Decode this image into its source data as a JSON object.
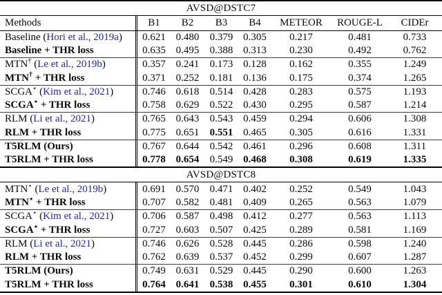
{
  "colors": {
    "citation_blue": "#2424aa",
    "rule_black": "#000000",
    "text_black": "#0a0a0a"
  },
  "table": {
    "columns": [
      "Methods",
      "B1",
      "B2",
      "B3",
      "B4",
      "METEOR",
      "ROUGE-L",
      "CIDEr"
    ],
    "sections": [
      {
        "title": "AVSD@DSTC7",
        "show_header": true,
        "groups": [
          [
            {
              "method": {
                "pre": "Baseline",
                "sup": "",
                "post": "",
                "cite": "Hori et al., 2019a",
                "bold": false
              },
              "values": [
                "0.621",
                "0.480",
                "0.379",
                "0.305",
                "0.217",
                "0.481",
                "0.733"
              ],
              "bold_values": [
                false,
                false,
                false,
                false,
                false,
                false,
                false
              ]
            },
            {
              "method": {
                "pre": "Baseline + THR loss",
                "sup": "",
                "post": "",
                "cite": "",
                "bold": true
              },
              "values": [
                "0.635",
                "0.495",
                "0.388",
                "0.313",
                "0.230",
                "0.492",
                "0.762"
              ],
              "bold_values": [
                false,
                false,
                false,
                false,
                false,
                false,
                false
              ]
            }
          ],
          [
            {
              "method": {
                "pre": "MTN",
                "sup": "†",
                "post": "",
                "cite": "Le et al., 2019b",
                "bold": false
              },
              "values": [
                "0.357",
                "0.241",
                "0.173",
                "0.128",
                "0.162",
                "0.355",
                "1.249"
              ],
              "bold_values": [
                false,
                false,
                false,
                false,
                false,
                false,
                false
              ]
            },
            {
              "method": {
                "pre": "MTN",
                "sup": "†",
                "post": " + THR loss",
                "cite": "",
                "bold": true
              },
              "values": [
                "0.371",
                "0.252",
                "0.181",
                "0.136",
                "0.175",
                "0.374",
                "1.265"
              ],
              "bold_values": [
                false,
                false,
                false,
                false,
                false,
                false,
                false
              ]
            }
          ],
          [
            {
              "method": {
                "pre": "SCGA",
                "sup": "⋆",
                "post": "",
                "cite": "Kim et al., 2021",
                "bold": false
              },
              "values": [
                "0.746",
                "0.618",
                "0.514",
                "0.428",
                "0.283",
                "0.575",
                "1.193"
              ],
              "bold_values": [
                false,
                false,
                false,
                false,
                false,
                false,
                false
              ]
            },
            {
              "method": {
                "pre": "SCGA",
                "sup": "⋆",
                "post": " + THR loss",
                "cite": "",
                "bold": true
              },
              "values": [
                "0.758",
                "0.629",
                "0.522",
                "0.430",
                "0.295",
                "0.587",
                "1.214"
              ],
              "bold_values": [
                false,
                false,
                false,
                false,
                false,
                false,
                false
              ]
            }
          ],
          [
            {
              "method": {
                "pre": "RLM",
                "sup": "",
                "post": "",
                "cite": "Li et al., 2021",
                "bold": false
              },
              "values": [
                "0.765",
                "0.643",
                "0.543",
                "0.459",
                "0.294",
                "0.606",
                "1.308"
              ],
              "bold_values": [
                false,
                false,
                false,
                false,
                false,
                false,
                false
              ]
            },
            {
              "method": {
                "pre": "RLM + THR loss",
                "sup": "",
                "post": "",
                "cite": "",
                "bold": true
              },
              "values": [
                "0.775",
                "0.651",
                "0.551",
                "0.465",
                "0.305",
                "0.616",
                "1.331"
              ],
              "bold_values": [
                false,
                false,
                true,
                false,
                false,
                false,
                false
              ]
            }
          ],
          [
            {
              "method": {
                "pre": "T5RLM (Ours)",
                "sup": "",
                "post": "",
                "cite": "",
                "bold": true
              },
              "values": [
                "0.767",
                "0.644",
                "0.542",
                "0.461",
                "0.296",
                "0.608",
                "1.311"
              ],
              "bold_values": [
                false,
                false,
                false,
                false,
                false,
                false,
                false
              ]
            },
            {
              "method": {
                "pre": "T5RLM + THR loss",
                "sup": "",
                "post": "",
                "cite": "",
                "bold": true
              },
              "values": [
                "0.778",
                "0.654",
                "0.549",
                "0.468",
                "0.308",
                "0.619",
                "1.335"
              ],
              "bold_values": [
                true,
                true,
                false,
                true,
                true,
                true,
                true
              ]
            }
          ]
        ]
      },
      {
        "title": "AVSD@DSTC8",
        "show_header": false,
        "groups": [
          [
            {
              "method": {
                "pre": "MTN",
                "sup": "⋆",
                "post": "",
                "cite": "Le et al., 2019b",
                "bold": false
              },
              "values": [
                "0.691",
                "0.570",
                "0.471",
                "0.402",
                "0.252",
                "0.549",
                "1.043"
              ],
              "bold_values": [
                false,
                false,
                false,
                false,
                false,
                false,
                false
              ]
            },
            {
              "method": {
                "pre": "MTN",
                "sup": "⋆",
                "post": " + THR loss",
                "cite": "",
                "bold": true
              },
              "values": [
                "0.707",
                "0.582",
                "0.481",
                "0.409",
                "0.265",
                "0.563",
                "1.079"
              ],
              "bold_values": [
                false,
                false,
                false,
                false,
                false,
                false,
                false
              ]
            }
          ],
          [
            {
              "method": {
                "pre": "SCGA",
                "sup": "⋆",
                "post": "",
                "cite": "Kim et al., 2021",
                "bold": false
              },
              "values": [
                "0.706",
                "0.587",
                "0.498",
                "0.412",
                "0.277",
                "0.563",
                "1.113"
              ],
              "bold_values": [
                false,
                false,
                false,
                false,
                false,
                false,
                false
              ]
            },
            {
              "method": {
                "pre": "SCGA",
                "sup": "⋆",
                "post": " + THR loss",
                "cite": "",
                "bold": true
              },
              "values": [
                "0.727",
                "0.603",
                "0.507",
                "0.425",
                "0.289",
                "0.581",
                "1.169"
              ],
              "bold_values": [
                false,
                false,
                false,
                false,
                false,
                false,
                false
              ]
            }
          ],
          [
            {
              "method": {
                "pre": "RLM",
                "sup": "",
                "post": "",
                "cite": "Li et al., 2021",
                "bold": false
              },
              "values": [
                "0.746",
                "0.626",
                "0.528",
                "0.445",
                "0.286",
                "0.598",
                "1.240"
              ],
              "bold_values": [
                false,
                false,
                false,
                false,
                false,
                false,
                false
              ]
            },
            {
              "method": {
                "pre": "RLM + THR loss",
                "sup": "",
                "post": "",
                "cite": "",
                "bold": true
              },
              "values": [
                "0.762",
                "0.639",
                "0.537",
                "0.452",
                "0.299",
                "0.607",
                "1.287"
              ],
              "bold_values": [
                false,
                false,
                false,
                false,
                false,
                false,
                false
              ]
            }
          ],
          [
            {
              "method": {
                "pre": "T5RLM (Ours)",
                "sup": "",
                "post": "",
                "cite": "",
                "bold": true
              },
              "values": [
                "0.749",
                "0.631",
                "0.529",
                "0.445",
                "0.290",
                "0.600",
                "1.263"
              ],
              "bold_values": [
                false,
                false,
                false,
                false,
                false,
                false,
                false
              ]
            },
            {
              "method": {
                "pre": "T5RLM + THR loss",
                "sup": "",
                "post": "",
                "cite": "",
                "bold": true
              },
              "values": [
                "0.764",
                "0.641",
                "0.538",
                "0.455",
                "0.301",
                "0.610",
                "1.304"
              ],
              "bold_values": [
                true,
                true,
                true,
                true,
                true,
                true,
                true
              ]
            }
          ]
        ]
      }
    ]
  }
}
